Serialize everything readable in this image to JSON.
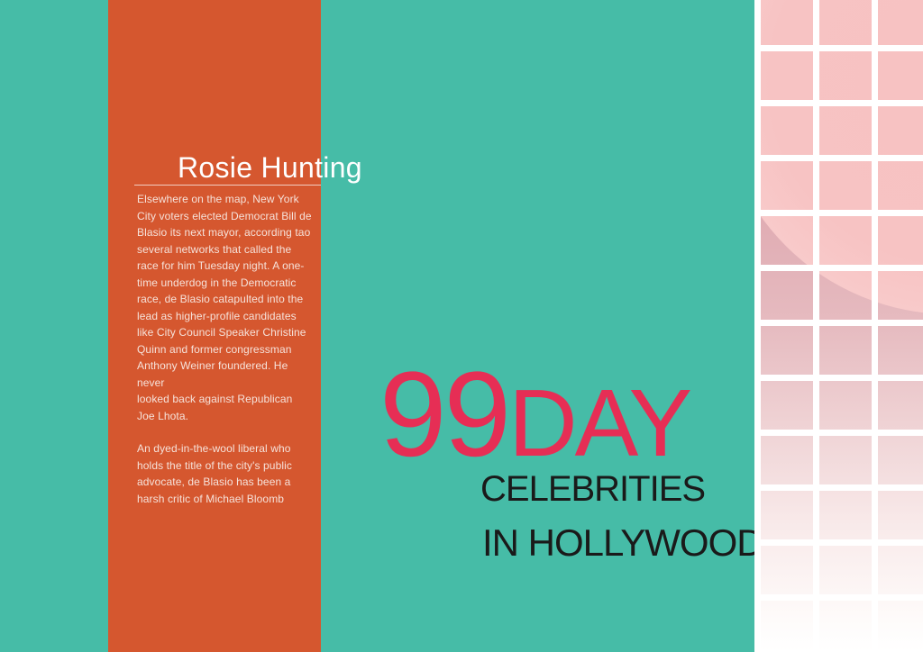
{
  "poster": {
    "colors": {
      "background_teal": "#46BCA7",
      "article_panel_orange": "#D5572F",
      "title_white": "#FFFFFF",
      "body_text": "#F6E2DA",
      "headline_pink": "#E62E55",
      "subtitle_black": "#1A1A1A",
      "grid_pink": "#F7C2C2"
    },
    "article": {
      "title": "Rosie Hunting",
      "paragraphs": [
        [
          "Elsewhere on the map, New York",
          "City voters elected Democrat Bill de",
          "Blasio its next mayor, according tao",
          "several networks that called the",
          "race for him Tuesday night. A one-",
          "time underdog in the Democratic",
          "race, de Blasio catapulted into the",
          "lead as higher-profile candidates",
          "like City Council Speaker Christine",
          "Quinn and former congressman",
          "Anthony Weiner foundered. He never",
          "looked back against Republican",
          "Joe Lhota."
        ],
        [
          "An dyed-in-the-wool liberal who",
          "holds the title of the city's public",
          "advocate, de Blasio has been a",
          "harsh critic of Michael Bloomb"
        ]
      ]
    },
    "headline": {
      "number": "99",
      "word": "DAY",
      "subtitle_line1": "CELEBRITIES",
      "subtitle_line2": "IN HOLLYWOOD"
    }
  }
}
